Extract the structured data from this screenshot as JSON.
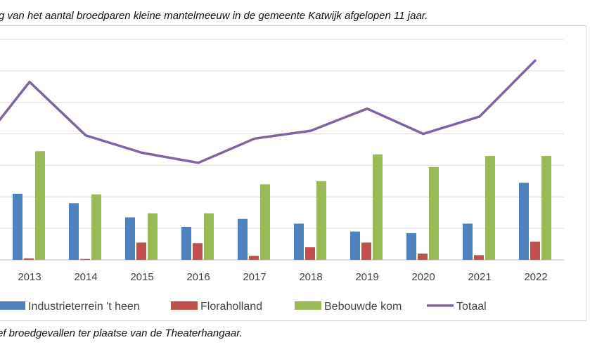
{
  "captions": {
    "top": "g van het aantal broedparen kleine mantelmeeuw in de gemeente Katwijk afgelopen 11 jaar.",
    "bottom": "ef broedgevallen ter plaatse van de Theaterhangaar."
  },
  "chart_data": {
    "type": "bar",
    "categories": [
      "2013",
      "2014",
      "2015",
      "2016",
      "2017",
      "2018",
      "2019",
      "2020",
      "2021",
      "2022"
    ],
    "ylim": [
      0,
      70
    ],
    "grid": true,
    "legend_position": "bottom",
    "series": [
      {
        "name": "Industrieterrein 't heen",
        "type": "bar",
        "color": "#4f81bd",
        "values": [
          21,
          18,
          13.5,
          10.5,
          13,
          11.5,
          9,
          8.5,
          11.5,
          24.5
        ]
      },
      {
        "name": "Floraholland",
        "type": "bar",
        "color": "#c0504d",
        "values": [
          0.5,
          0.3,
          5.5,
          5.3,
          1.3,
          4,
          5.5,
          2,
          1.5,
          5.8
        ]
      },
      {
        "name": "Bebouwde kom",
        "type": "bar",
        "color": "#9bbb59",
        "values": [
          34.5,
          20.8,
          14.8,
          14.8,
          24,
          25,
          33.5,
          29.5,
          33,
          33
        ]
      },
      {
        "name": "Totaal",
        "type": "line",
        "color": "#8064a2",
        "values": [
          56.5,
          39.5,
          34,
          30.8,
          38.5,
          41,
          48,
          40,
          45.5,
          63.5
        ]
      }
    ],
    "line_extension_left": 44
  }
}
